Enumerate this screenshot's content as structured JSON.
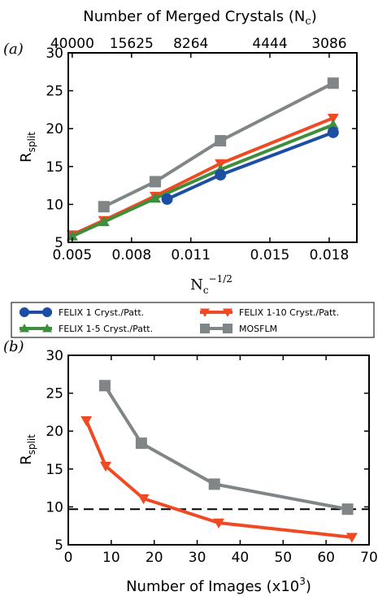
{
  "chart_data": [
    {
      "type": "line",
      "panel_label": "(a)",
      "xlabel_base": "N",
      "xlabel_sub": "c",
      "xlabel_sup": "−1/2",
      "ylabel_main": "R",
      "ylabel_sub": "split",
      "xlim": [
        0.0048,
        0.0194
      ],
      "ylim": [
        5,
        30
      ],
      "xticks": [
        {
          "value": 0.005,
          "label": "0.005"
        },
        {
          "value": 0.008,
          "label": "0.008"
        },
        {
          "value": 0.011,
          "label": "0.011"
        },
        {
          "value": 0.015,
          "label": "0.015"
        },
        {
          "value": 0.018,
          "label": "0.018"
        }
      ],
      "yticks": [
        5,
        10,
        15,
        20,
        25,
        30
      ],
      "top_axis_title_main": "Number of Merged Crystals (N",
      "top_axis_title_sub": "c",
      "top_axis_title_end": ")",
      "top_ticks": [
        {
          "value": 0.005,
          "label": "40000"
        },
        {
          "value": 0.008,
          "label": "15625"
        },
        {
          "value": 0.011,
          "label": "8264"
        },
        {
          "value": 0.015,
          "label": "4444"
        },
        {
          "value": 0.018,
          "label": "3086"
        }
      ],
      "series": [
        {
          "name": "MOSFLM",
          "color": "#808588",
          "marker": "square",
          "x": [
            0.0066,
            0.0092,
            0.0125,
            0.0182
          ],
          "y": [
            9.7,
            13.0,
            18.4,
            26.0
          ]
        },
        {
          "name": "FELIX 1-10 Cryst./Patt.",
          "color": "#ef4a23",
          "marker": "triangle-down",
          "x": [
            0.005,
            0.0066,
            0.0092,
            0.0125,
            0.0182
          ],
          "y": [
            6.0,
            7.9,
            11.1,
            15.4,
            21.4
          ]
        },
        {
          "name": "FELIX 1-5 Cryst./Patt.",
          "color": "#3e8e3b",
          "marker": "triangle-up",
          "x": [
            0.005,
            0.0066,
            0.0092,
            0.0125,
            0.0182
          ],
          "y": [
            5.8,
            7.7,
            10.8,
            14.6,
            20.5
          ]
        },
        {
          "name": "FELIX 1 Cryst./Patt.",
          "color": "#1c4fa3",
          "marker": "circle",
          "x": [
            0.0098,
            0.0125,
            0.0182
          ],
          "y": [
            10.7,
            13.9,
            19.5
          ]
        }
      ]
    },
    {
      "type": "line",
      "panel_label": "(b)",
      "xlabel_main": "Number of Images (x10",
      "xlabel_sup": "3",
      "xlabel_end": ")",
      "ylabel_main": "R",
      "ylabel_sub": "split",
      "xlim": [
        0,
        70
      ],
      "ylim": [
        5,
        30
      ],
      "xticks": [
        0,
        10,
        20,
        30,
        40,
        50,
        60,
        70
      ],
      "yticks": [
        5,
        10,
        15,
        20,
        25,
        30
      ],
      "hline": {
        "y": 9.7,
        "style": "dashed",
        "color": "#000000"
      },
      "series": [
        {
          "name": "MOSFLM",
          "color": "#808588",
          "marker": "square",
          "x": [
            8.5,
            17,
            34,
            65
          ],
          "y": [
            26.0,
            18.4,
            13.0,
            9.7
          ]
        },
        {
          "name": "FELIX 1-10 Cryst./Patt.",
          "color": "#ef4a23",
          "marker": "triangle-down",
          "x": [
            4.2,
            8.7,
            17.5,
            35,
            66
          ],
          "y": [
            21.4,
            15.4,
            11.1,
            7.9,
            6.0
          ]
        }
      ]
    }
  ],
  "legend": {
    "items": [
      {
        "label": "FELIX 1 Cryst./Patt.",
        "color": "#1c4fa3",
        "marker": "circle"
      },
      {
        "label": "FELIX 1-10 Cryst./Patt.",
        "color": "#ef4a23",
        "marker": "triangle-down"
      },
      {
        "label": "FELIX 1-5 Cryst./Patt.",
        "color": "#3e8e3b",
        "marker": "triangle-up"
      },
      {
        "label": "MOSFLM",
        "color": "#808588",
        "marker": "square"
      }
    ]
  }
}
